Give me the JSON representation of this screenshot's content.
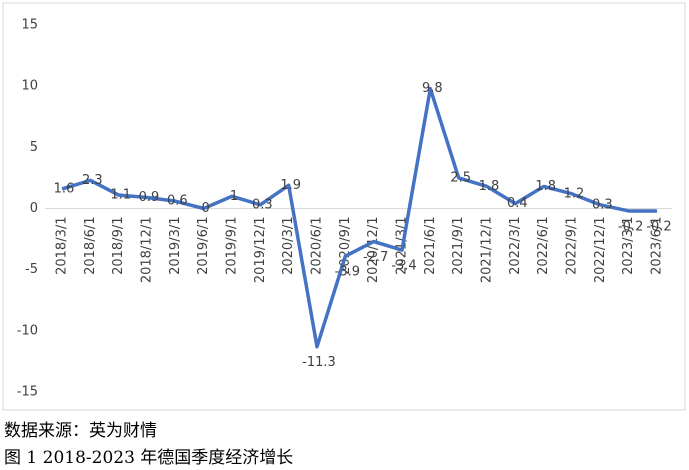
{
  "chart_data": {
    "type": "line",
    "categories": [
      "2018/3/1",
      "2018/6/1",
      "2018/9/1",
      "2018/12/1",
      "2019/3/1",
      "2019/6/1",
      "2019/9/1",
      "2019/12/1",
      "2020/3/1",
      "2020/6/1",
      "2020/9/1",
      "2020/12/1",
      "2021/3/1",
      "2021/6/1",
      "2021/9/1",
      "2021/12/1",
      "2022/3/1",
      "2022/6/1",
      "2022/9/1",
      "2022/12/1",
      "2023/3/1",
      "2023/6/1"
    ],
    "values": [
      1.6,
      2.3,
      1.1,
      0.9,
      0.6,
      0,
      1,
      0.3,
      1.9,
      -11.3,
      -3.9,
      -2.7,
      -3.4,
      9.8,
      2.5,
      1.8,
      0.4,
      1.8,
      1.2,
      0.3,
      -0.2,
      -0.2
    ],
    "color": "#4472c4",
    "ylim": [
      -15,
      15
    ],
    "yticks": [
      -15,
      -10,
      -5,
      0,
      5,
      10,
      15
    ],
    "source": "数据来源：英为财情",
    "caption": "图 1 2018-2023 年德国季度经济增长"
  }
}
